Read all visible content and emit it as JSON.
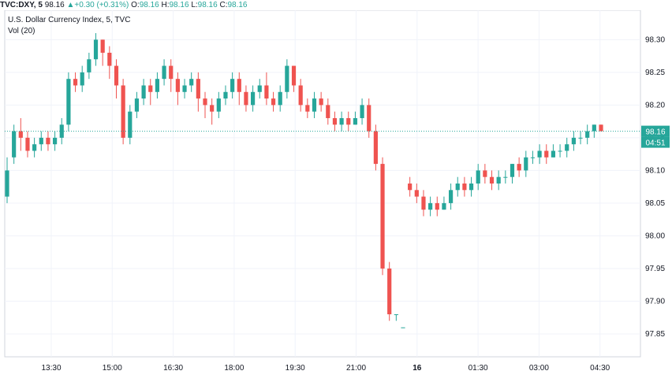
{
  "header": {
    "symbol": "TVC:DXY, 5",
    "last": "98.16",
    "change_arrow": "▲",
    "change": "+0.30 (+0.31%)",
    "open_label": "O:",
    "open": "98.16",
    "high_label": "H:",
    "high": "98.16",
    "low_label": "L:",
    "low": "98.16",
    "close_label": "C:",
    "close": "98.16"
  },
  "legend": {
    "title": "U.S. Dollar Currency Index, 5, TVC",
    "volume": "Vol (20)"
  },
  "price_label": "98.16",
  "countdown": "04:51",
  "colors": {
    "up": "#26a69a",
    "down": "#ef5350",
    "last_line": "#26a69a",
    "grid": "#f0f3fa",
    "axis_text": "#131722"
  },
  "chart_data": {
    "type": "candlestick",
    "title": "U.S. Dollar Currency Index, 5, TVC",
    "ylim": [
      97.815,
      98.345
    ],
    "y_ticks": [
      "98.30",
      "98.25",
      "98.20",
      "98.15",
      "98.10",
      "98.05",
      "98.00",
      "97.95",
      "97.90",
      "97.85"
    ],
    "x_ticks": [
      "13:30",
      "15:00",
      "16:30",
      "18:00",
      "19:30",
      "21:00",
      "16",
      "01:30",
      "03:00",
      "04:30"
    ],
    "grid": true,
    "last_price": 98.16,
    "candles": [
      [
        98.06,
        98.1,
        98.05,
        98.12
      ],
      [
        98.12,
        98.16,
        98.11,
        98.17
      ],
      [
        98.16,
        98.15,
        98.13,
        98.18
      ],
      [
        98.15,
        98.13,
        98.12,
        98.16
      ],
      [
        98.13,
        98.14,
        98.12,
        98.15
      ],
      [
        98.14,
        98.15,
        98.13,
        98.16
      ],
      [
        98.15,
        98.14,
        98.13,
        98.16
      ],
      [
        98.14,
        98.15,
        98.13,
        98.16
      ],
      [
        98.15,
        98.17,
        98.14,
        98.18
      ],
      [
        98.17,
        98.24,
        98.16,
        98.25
      ],
      [
        98.24,
        98.23,
        98.22,
        98.25
      ],
      [
        98.23,
        98.25,
        98.22,
        98.26
      ],
      [
        98.25,
        98.27,
        98.24,
        98.28
      ],
      [
        98.27,
        98.3,
        98.26,
        98.31
      ],
      [
        98.3,
        98.28,
        98.26,
        98.3
      ],
      [
        98.28,
        98.26,
        98.24,
        98.29
      ],
      [
        98.26,
        98.23,
        98.21,
        98.27
      ],
      [
        98.23,
        98.15,
        98.14,
        98.24
      ],
      [
        98.15,
        98.19,
        98.14,
        98.2
      ],
      [
        98.19,
        98.21,
        98.18,
        98.22
      ],
      [
        98.21,
        98.23,
        98.2,
        98.24
      ],
      [
        98.23,
        98.22,
        98.2,
        98.24
      ],
      [
        98.22,
        98.24,
        98.21,
        98.25
      ],
      [
        98.24,
        98.26,
        98.23,
        98.27
      ],
      [
        98.26,
        98.24,
        98.22,
        98.27
      ],
      [
        98.24,
        98.22,
        98.2,
        98.25
      ],
      [
        98.22,
        98.23,
        98.21,
        98.24
      ],
      [
        98.23,
        98.24,
        98.22,
        98.25
      ],
      [
        98.24,
        98.21,
        98.19,
        98.25
      ],
      [
        98.21,
        98.2,
        98.18,
        98.22
      ],
      [
        98.2,
        98.19,
        98.17,
        98.21
      ],
      [
        98.19,
        98.21,
        98.18,
        98.22
      ],
      [
        98.21,
        98.22,
        98.2,
        98.23
      ],
      [
        98.22,
        98.24,
        98.21,
        98.25
      ],
      [
        98.24,
        98.22,
        98.2,
        98.25
      ],
      [
        98.22,
        98.2,
        98.19,
        98.23
      ],
      [
        98.2,
        98.22,
        98.19,
        98.23
      ],
      [
        98.22,
        98.23,
        98.21,
        98.24
      ],
      [
        98.23,
        98.21,
        98.2,
        98.25
      ],
      [
        98.21,
        98.2,
        98.19,
        98.22
      ],
      [
        98.2,
        98.22,
        98.19,
        98.23
      ],
      [
        98.22,
        98.26,
        98.21,
        98.27
      ],
      [
        98.26,
        98.23,
        98.22,
        98.26
      ],
      [
        98.23,
        98.2,
        98.19,
        98.24
      ],
      [
        98.2,
        98.19,
        98.18,
        98.21
      ],
      [
        98.19,
        98.21,
        98.18,
        98.22
      ],
      [
        98.21,
        98.2,
        98.19,
        98.22
      ],
      [
        98.2,
        98.18,
        98.17,
        98.21
      ],
      [
        98.18,
        98.17,
        98.16,
        98.19
      ],
      [
        98.17,
        98.18,
        98.16,
        98.19
      ],
      [
        98.18,
        98.17,
        98.16,
        98.19
      ],
      [
        98.17,
        98.18,
        98.17,
        98.19
      ],
      [
        98.18,
        98.2,
        98.17,
        98.21
      ],
      [
        98.2,
        98.16,
        98.15,
        98.21
      ],
      [
        98.16,
        98.11,
        98.1,
        98.17
      ],
      [
        98.11,
        97.95,
        97.94,
        98.12
      ],
      [
        97.95,
        97.88,
        97.87,
        97.96
      ],
      [
        97.88,
        97.88,
        97.87,
        97.88
      ],
      [
        97.86,
        97.86,
        97.86,
        97.86
      ],
      [
        98.08,
        98.07,
        98.06,
        98.09
      ],
      [
        98.07,
        98.06,
        98.05,
        98.08
      ],
      [
        98.06,
        98.04,
        98.03,
        98.07
      ],
      [
        98.04,
        98.05,
        98.03,
        98.06
      ],
      [
        98.05,
        98.04,
        98.03,
        98.06
      ],
      [
        98.04,
        98.05,
        98.04,
        98.06
      ],
      [
        98.05,
        98.07,
        98.04,
        98.08
      ],
      [
        98.07,
        98.08,
        98.06,
        98.09
      ],
      [
        98.08,
        98.07,
        98.06,
        98.09
      ],
      [
        98.07,
        98.08,
        98.06,
        98.09
      ],
      [
        98.08,
        98.1,
        98.07,
        98.11
      ],
      [
        98.1,
        98.09,
        98.08,
        98.11
      ],
      [
        98.09,
        98.08,
        98.07,
        98.1
      ],
      [
        98.08,
        98.09,
        98.07,
        98.1
      ],
      [
        98.09,
        98.09,
        98.08,
        98.1
      ],
      [
        98.09,
        98.11,
        98.08,
        98.11
      ],
      [
        98.11,
        98.1,
        98.09,
        98.12
      ],
      [
        98.1,
        98.12,
        98.09,
        98.13
      ],
      [
        98.12,
        98.12,
        98.11,
        98.13
      ],
      [
        98.12,
        98.13,
        98.11,
        98.14
      ],
      [
        98.13,
        98.12,
        98.11,
        98.14
      ],
      [
        98.12,
        98.13,
        98.12,
        98.14
      ],
      [
        98.13,
        98.13,
        98.12,
        98.14
      ],
      [
        98.13,
        98.14,
        98.12,
        98.15
      ],
      [
        98.14,
        98.15,
        98.13,
        98.16
      ],
      [
        98.15,
        98.15,
        98.14,
        98.16
      ],
      [
        98.15,
        98.16,
        98.14,
        98.17
      ],
      [
        98.16,
        98.17,
        98.15,
        98.17
      ],
      [
        98.17,
        98.16,
        98.16,
        98.17
      ]
    ]
  }
}
